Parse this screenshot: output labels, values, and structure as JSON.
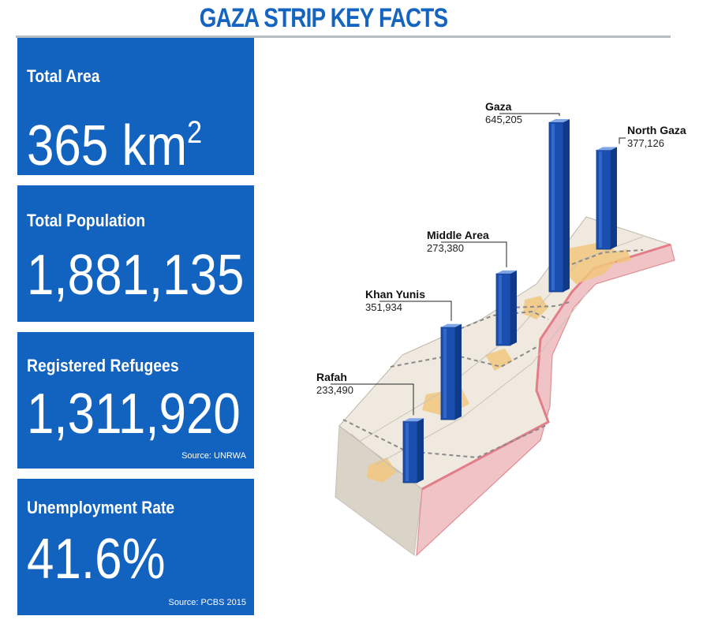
{
  "title": "GAZA STRIP KEY FACTS",
  "cards": [
    {
      "label": "Total Area",
      "value": "365 km",
      "value_sup": "2",
      "source": ""
    },
    {
      "label": "Total Population",
      "value": "1,881,135",
      "value_sup": "",
      "source": ""
    },
    {
      "label": "Registered Refugees",
      "value": "1,311,920",
      "value_sup": "",
      "source": "Source: UNRWA"
    },
    {
      "label": "Unemployment Rate",
      "value": "41.6%",
      "value_sup": "",
      "source": "Source: PCBS 2015"
    }
  ],
  "colors": {
    "card_bg": "#1262bf",
    "title": "#1565c0",
    "bar": "#1a4fb0",
    "map_land": "#efe9df",
    "map_border": "#e89aa0",
    "urban": "#f2c77e"
  },
  "chart_data": {
    "type": "bar",
    "categories": [
      "Rafah",
      "Khan Yunis",
      "Middle Area",
      "Gaza",
      "North Gaza"
    ],
    "values": [
      233490,
      351934,
      273380,
      645205,
      377126
    ],
    "value_labels": [
      "233,490",
      "351,934",
      "273,380",
      "645,205",
      "377,126"
    ],
    "title": "",
    "xlabel": "",
    "ylabel": ""
  }
}
